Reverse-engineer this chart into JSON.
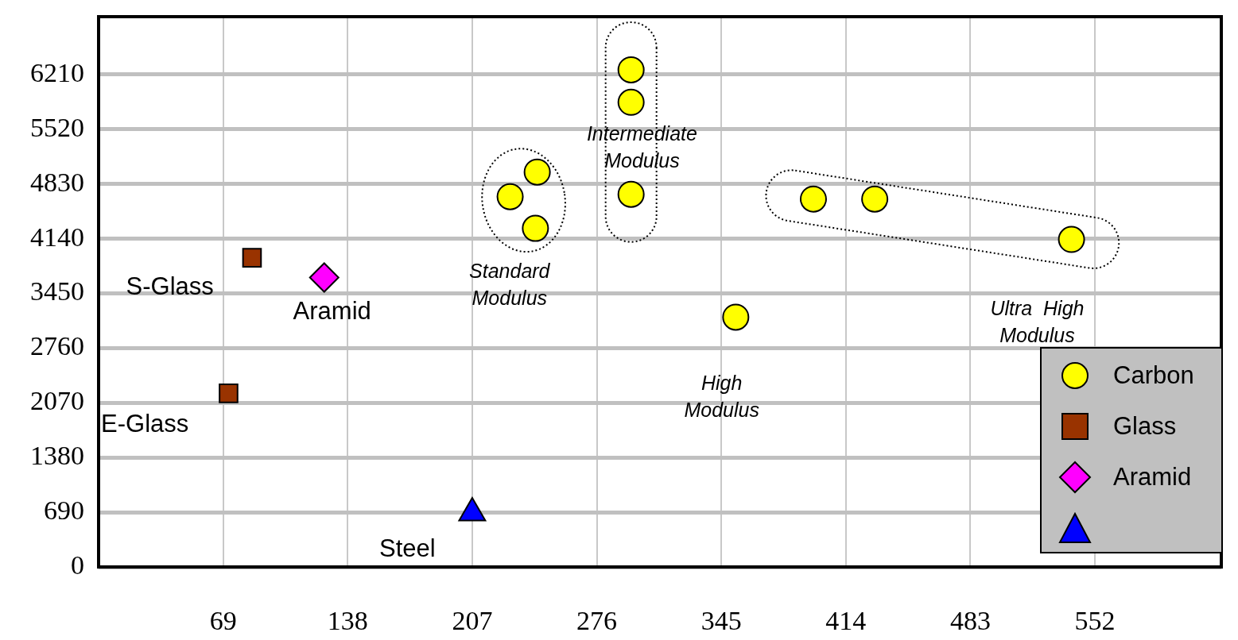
{
  "chart_data": {
    "type": "scatter",
    "xlim": [
      0,
      622
    ],
    "ylim": [
      0,
      6940
    ],
    "xticks": [
      69,
      138,
      207,
      276,
      345,
      414,
      483,
      552
    ],
    "yticks": [
      0,
      690,
      1380,
      2070,
      2760,
      3450,
      4140,
      4830,
      5520,
      6210
    ],
    "grid": true,
    "legend": "bottom right",
    "series": [
      {
        "name": "Carbon",
        "color": "#ffff00",
        "marker": "circle",
        "x": [
          295,
          295,
          295,
          228,
          243,
          242,
          353,
          396,
          430,
          539
        ],
        "values": [
          6270,
          5860,
          4700,
          4670,
          4980,
          4270,
          3150,
          4640,
          4640,
          4130
        ]
      },
      {
        "name": "Glass",
        "color": "#993300",
        "marker": "square",
        "x": [
          85,
          72
        ],
        "values": [
          3900,
          2190
        ]
      },
      {
        "name": "Aramid",
        "color": "#ff00ff",
        "marker": "diamond",
        "x": [
          125
        ],
        "values": [
          3650
        ]
      },
      {
        "color": "#0000ff",
        "marker": "triangle",
        "x": [
          207
        ],
        "values": [
          680
        ]
      }
    ],
    "annotations": [
      "S-Glass",
      "E-Glass",
      "Aramid",
      "Steel",
      "Standard Modulus",
      "Intermediate Modulus",
      "High Modulus",
      "Ultra  High Modulus"
    ]
  }
}
